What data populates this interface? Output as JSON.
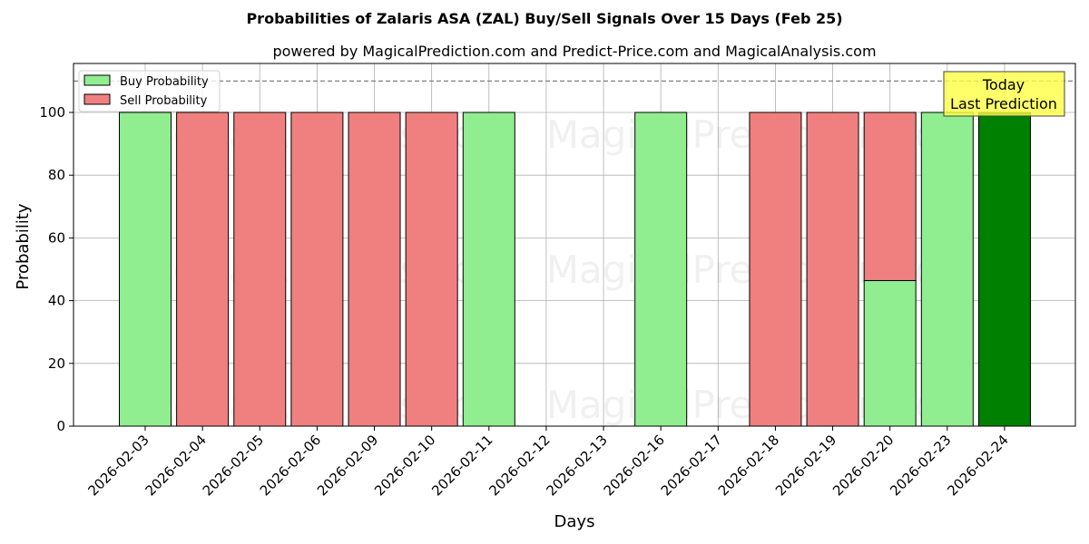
{
  "title": "Probabilities of Zalaris ASA (ZAL) Buy/Sell Signals Over 15 Days (Feb 25)",
  "subtitle": "powered by MagicalPrediction.com and Predict-Price.com and MagicalAnalysis.com",
  "watermarks": [
    "MagicalAnalysis.com",
    "MagicalPrediction.com"
  ],
  "annotation": {
    "line1": "Today",
    "line2": "Last Prediction",
    "color": "#ffff44"
  },
  "colors": {
    "buy": "#90ee90",
    "sell": "#f08080",
    "today": "#008000",
    "grid": "#b0b0b0",
    "dashed_line": "#808080"
  },
  "chart_data": {
    "type": "bar",
    "stacked": true,
    "title": "Probabilities of Zalaris ASA (ZAL) Buy/Sell Signals Over 15 Days (Feb 25)",
    "subtitle": "powered by MagicalPrediction.com and Predict-Price.com and MagicalAnalysis.com",
    "xlabel": "Days",
    "ylabel": "Probability",
    "ylim": [
      0,
      115
    ],
    "yticks": [
      0,
      20,
      40,
      60,
      80,
      100
    ],
    "grid": true,
    "legend_position": "upper left",
    "reference_line": {
      "y": 110,
      "style": "dashed"
    },
    "categories": [
      "2026-02-03",
      "2026-02-04",
      "2026-02-05",
      "2026-02-06",
      "2026-02-09",
      "2026-02-10",
      "2026-02-11",
      "2026-02-12",
      "2026-02-13",
      "2026-02-16",
      "2026-02-17",
      "2026-02-18",
      "2026-02-19",
      "2026-02-20",
      "2026-02-23",
      "2026-02-24"
    ],
    "series": [
      {
        "name": "Buy Probability",
        "values": [
          100,
          0,
          0,
          0,
          0,
          0,
          100,
          0,
          0,
          100,
          0,
          0,
          0,
          46.4,
          100,
          100
        ]
      },
      {
        "name": "Sell Probability",
        "values": [
          0,
          100,
          100,
          100,
          100,
          100,
          0,
          0,
          0,
          0,
          0,
          100,
          100,
          53.6,
          0,
          0
        ]
      }
    ],
    "highlight": {
      "category": "2026-02-24",
      "label": "Today\nLast Prediction"
    }
  }
}
